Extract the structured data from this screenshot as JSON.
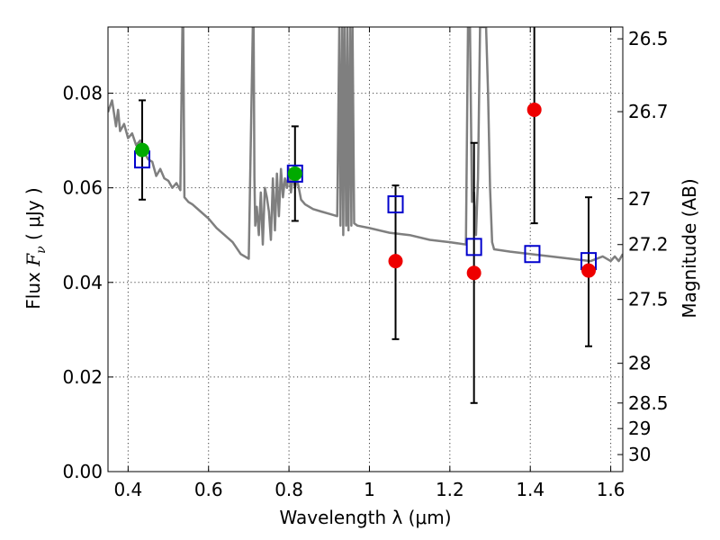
{
  "chart_data": {
    "type": "scatter",
    "xlabel": "Wavelength  λ (μm)",
    "ylabel_parts": [
      "Flux  ",
      "F",
      "ν",
      "  (  μJy  )"
    ],
    "y2label": "Magnitude (AB)",
    "xlim": [
      0.35,
      1.63
    ],
    "ylim": [
      0,
      0.094
    ],
    "grid": true,
    "x_ticks": [
      0.4,
      0.6,
      0.8,
      1.0,
      1.2,
      1.4,
      1.6
    ],
    "x_tick_labels": [
      "0.4",
      "0.6",
      "0.8",
      "1",
      "1.2",
      "1.4",
      "1.6"
    ],
    "y_ticks": [
      0,
      0.02,
      0.04,
      0.06,
      0.08
    ],
    "y_tick_labels": [
      "0.00",
      "0.02",
      "0.04",
      "0.06",
      "0.08"
    ],
    "y2_ticks": [
      {
        "label": "26.5",
        "flux": 0.0915
      },
      {
        "label": "26.7",
        "flux": 0.0761
      },
      {
        "label": "27",
        "flux": 0.0577
      },
      {
        "label": "27.2",
        "flux": 0.048
      },
      {
        "label": "27.5",
        "flux": 0.0364
      },
      {
        "label": "28",
        "flux": 0.0229
      },
      {
        "label": "28.5",
        "flux": 0.0145
      },
      {
        "label": "29",
        "flux": 0.0091
      },
      {
        "label": "30",
        "flux": 0.0036
      }
    ],
    "series": [
      {
        "kind": "model_spectrum",
        "color": "#7f7f7f",
        "x": [
          0.35,
          0.36,
          0.37,
          0.375,
          0.38,
          0.39,
          0.4,
          0.41,
          0.42,
          0.43,
          0.44,
          0.45,
          0.46,
          0.47,
          0.48,
          0.49,
          0.5,
          0.51,
          0.52,
          0.53,
          0.535,
          0.537,
          0.54,
          0.55,
          0.56,
          0.58,
          0.6,
          0.62,
          0.64,
          0.66,
          0.68,
          0.7,
          0.71,
          0.712,
          0.714,
          0.716,
          0.72,
          0.725,
          0.73,
          0.735,
          0.74,
          0.745,
          0.75,
          0.755,
          0.76,
          0.765,
          0.77,
          0.775,
          0.78,
          0.785,
          0.79,
          0.795,
          0.8,
          0.805,
          0.81,
          0.815,
          0.82,
          0.83,
          0.84,
          0.86,
          0.88,
          0.9,
          0.92,
          0.925,
          0.928,
          0.932,
          0.935,
          0.938,
          0.942,
          0.945,
          0.948,
          0.952,
          0.955,
          0.958,
          0.962,
          0.97,
          1.0,
          1.05,
          1.1,
          1.15,
          1.2,
          1.24,
          1.245,
          1.25,
          1.255,
          1.26,
          1.265,
          1.27,
          1.275,
          1.28,
          1.285,
          1.29,
          1.295,
          1.3,
          1.305,
          1.31,
          1.35,
          1.4,
          1.45,
          1.5,
          1.55,
          1.58,
          1.6,
          1.61,
          1.62,
          1.63
        ],
        "y": [
          0.076,
          0.0785,
          0.073,
          0.0765,
          0.072,
          0.0735,
          0.0705,
          0.0715,
          0.069,
          0.07,
          0.0675,
          0.066,
          0.0655,
          0.0625,
          0.064,
          0.062,
          0.0615,
          0.06,
          0.061,
          0.0595,
          0.094,
          0.094,
          0.058,
          0.057,
          0.0565,
          0.055,
          0.0535,
          0.0515,
          0.05,
          0.0485,
          0.046,
          0.045,
          0.094,
          0.094,
          0.062,
          0.052,
          0.056,
          0.05,
          0.059,
          0.048,
          0.06,
          0.058,
          0.055,
          0.049,
          0.062,
          0.051,
          0.063,
          0.054,
          0.064,
          0.058,
          0.062,
          0.06,
          0.064,
          0.059,
          0.063,
          0.06,
          0.062,
          0.0575,
          0.0565,
          0.0555,
          0.055,
          0.0545,
          0.054,
          0.094,
          0.052,
          0.094,
          0.05,
          0.094,
          0.052,
          0.094,
          0.051,
          0.094,
          0.052,
          0.094,
          0.0525,
          0.052,
          0.0515,
          0.0505,
          0.05,
          0.049,
          0.0485,
          0.048,
          0.094,
          0.094,
          0.057,
          0.059,
          0.05,
          0.062,
          0.094,
          0.094,
          0.094,
          0.094,
          0.08,
          0.06,
          0.0485,
          0.047,
          0.0465,
          0.046,
          0.0455,
          0.045,
          0.0445,
          0.0455,
          0.0445,
          0.0455,
          0.0445,
          0.046
        ]
      },
      {
        "kind": "model_photometry",
        "marker": "open-square",
        "color": "#0000cc",
        "x": [
          0.435,
          0.815,
          1.065,
          1.26,
          1.405,
          1.545
        ],
        "y": [
          0.066,
          0.063,
          0.0565,
          0.0475,
          0.046,
          0.0445
        ]
      },
      {
        "kind": "detections",
        "marker": "circle",
        "color": "#00aa00",
        "x": [
          0.435,
          0.815
        ],
        "y": [
          0.068,
          0.063
        ],
        "yerr_low": [
          0.0575,
          0.053
        ],
        "yerr_high": [
          0.0785,
          0.073
        ]
      },
      {
        "kind": "observed",
        "marker": "circle",
        "color": "#ee0000",
        "x": [
          1.065,
          1.26,
          1.41,
          1.545
        ],
        "y": [
          0.0445,
          0.042,
          0.0765,
          0.0425
        ],
        "yerr_low": [
          0.028,
          0.0145,
          0.0525,
          0.0265
        ],
        "yerr_high": [
          0.0605,
          0.0695,
          0.094,
          0.058
        ]
      }
    ]
  }
}
